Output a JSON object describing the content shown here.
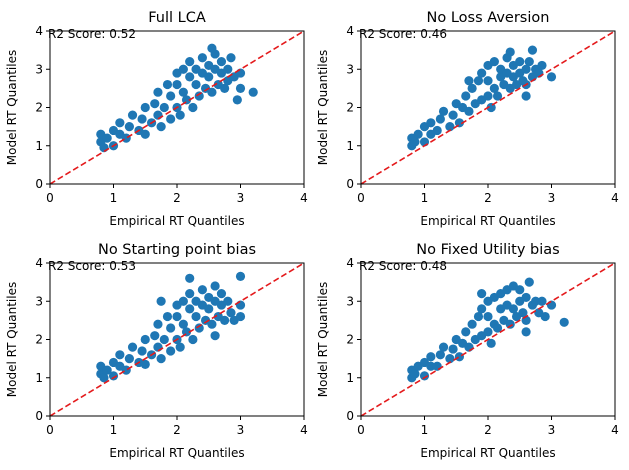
{
  "colors": {
    "points": "#1f77b4",
    "reference_line": "#e41a1c",
    "axes": "#000000",
    "background": "#ffffff"
  },
  "chart_data": [
    {
      "type": "scatter",
      "title": "Full LCA",
      "xlabel": "Empirical RT Quantiles",
      "ylabel": "Model RT Quantiles",
      "xlim": [
        0,
        4
      ],
      "ylim": [
        0,
        4
      ],
      "xticks": [
        "0",
        "1",
        "2",
        "3",
        "4"
      ],
      "yticks": [
        "0",
        "1",
        "2",
        "3",
        "4"
      ],
      "annotation": "R2 Score: 0.52",
      "reference_line": "y = x (red dashed)",
      "grid": false,
      "series": [
        {
          "color": "#1f77b4",
          "points": [
            [
              0.8,
              1.1
            ],
            [
              0.8,
              1.3
            ],
            [
              0.85,
              0.95
            ],
            [
              0.9,
              1.2
            ],
            [
              1.0,
              1.0
            ],
            [
              1.0,
              1.4
            ],
            [
              1.1,
              1.3
            ],
            [
              1.1,
              1.6
            ],
            [
              1.2,
              1.2
            ],
            [
              1.25,
              1.5
            ],
            [
              1.3,
              1.8
            ],
            [
              1.4,
              1.4
            ],
            [
              1.45,
              1.7
            ],
            [
              1.5,
              2.0
            ],
            [
              1.5,
              1.3
            ],
            [
              1.6,
              1.6
            ],
            [
              1.65,
              2.1
            ],
            [
              1.7,
              1.8
            ],
            [
              1.7,
              2.4
            ],
            [
              1.75,
              1.5
            ],
            [
              1.8,
              2.0
            ],
            [
              1.85,
              2.6
            ],
            [
              1.9,
              1.7
            ],
            [
              1.9,
              2.3
            ],
            [
              2.0,
              2.0
            ],
            [
              2.0,
              2.6
            ],
            [
              2.0,
              2.9
            ],
            [
              2.05,
              1.8
            ],
            [
              2.1,
              2.4
            ],
            [
              2.1,
              3.0
            ],
            [
              2.15,
              2.2
            ],
            [
              2.2,
              2.8
            ],
            [
              2.2,
              3.2
            ],
            [
              2.25,
              2.0
            ],
            [
              2.3,
              2.6
            ],
            [
              2.3,
              3.0
            ],
            [
              2.35,
              2.3
            ],
            [
              2.4,
              2.9
            ],
            [
              2.4,
              3.3
            ],
            [
              2.45,
              2.5
            ],
            [
              2.5,
              2.8
            ],
            [
              2.5,
              3.1
            ],
            [
              2.55,
              2.4
            ],
            [
              2.6,
              3.0
            ],
            [
              2.6,
              3.4
            ],
            [
              2.65,
              2.6
            ],
            [
              2.7,
              2.9
            ],
            [
              2.7,
              3.2
            ],
            [
              2.75,
              2.5
            ],
            [
              2.8,
              3.0
            ],
            [
              2.8,
              2.7
            ],
            [
              2.85,
              3.3
            ],
            [
              2.9,
              2.8
            ],
            [
              2.95,
              2.2
            ],
            [
              3.0,
              2.9
            ],
            [
              3.0,
              2.5
            ],
            [
              3.2,
              2.4
            ],
            [
              2.55,
              3.55
            ]
          ]
        }
      ]
    },
    {
      "type": "scatter",
      "title": "No Loss Aversion",
      "xlabel": "Empirical RT Quantiles",
      "ylabel": "Model RT Quantiles",
      "xlim": [
        0,
        4
      ],
      "ylim": [
        0,
        4
      ],
      "xticks": [
        "0",
        "1",
        "2",
        "3",
        "4"
      ],
      "yticks": [
        "0",
        "1",
        "2",
        "3",
        "4"
      ],
      "annotation": "R2 Score: 0.46",
      "reference_line": "y = x (red dashed)",
      "grid": false,
      "series": [
        {
          "color": "#1f77b4",
          "points": [
            [
              0.8,
              1.0
            ],
            [
              0.8,
              1.2
            ],
            [
              0.85,
              1.1
            ],
            [
              0.9,
              1.3
            ],
            [
              1.0,
              1.1
            ],
            [
              1.0,
              1.5
            ],
            [
              1.1,
              1.3
            ],
            [
              1.1,
              1.6
            ],
            [
              1.2,
              1.4
            ],
            [
              1.25,
              1.7
            ],
            [
              1.3,
              1.9
            ],
            [
              1.4,
              1.5
            ],
            [
              1.45,
              1.8
            ],
            [
              1.5,
              2.1
            ],
            [
              1.55,
              1.6
            ],
            [
              1.6,
              2.0
            ],
            [
              1.65,
              2.3
            ],
            [
              1.7,
              1.9
            ],
            [
              1.75,
              2.5
            ],
            [
              1.8,
              2.1
            ],
            [
              1.85,
              2.7
            ],
            [
              1.9,
              2.2
            ],
            [
              1.9,
              2.9
            ],
            [
              2.0,
              2.3
            ],
            [
              2.0,
              2.7
            ],
            [
              2.0,
              3.1
            ],
            [
              2.05,
              2.0
            ],
            [
              2.1,
              2.5
            ],
            [
              2.1,
              3.2
            ],
            [
              2.15,
              2.3
            ],
            [
              2.2,
              2.8
            ],
            [
              2.2,
              3.0
            ],
            [
              2.25,
              2.6
            ],
            [
              2.3,
              2.9
            ],
            [
              2.3,
              3.3
            ],
            [
              2.35,
              2.5
            ],
            [
              2.4,
              2.8
            ],
            [
              2.4,
              3.1
            ],
            [
              2.45,
              2.6
            ],
            [
              2.5,
              2.9
            ],
            [
              2.5,
              3.2
            ],
            [
              2.55,
              2.7
            ],
            [
              2.6,
              3.0
            ],
            [
              2.6,
              2.6
            ],
            [
              2.65,
              3.2
            ],
            [
              2.7,
              2.8
            ],
            [
              2.75,
              3.0
            ],
            [
              2.8,
              2.9
            ],
            [
              2.85,
              3.1
            ],
            [
              2.35,
              3.45
            ],
            [
              2.7,
              3.5
            ],
            [
              1.7,
              2.7
            ],
            [
              3.0,
              2.8
            ],
            [
              2.6,
              2.3
            ]
          ]
        }
      ]
    },
    {
      "type": "scatter",
      "title": "No Starting point bias",
      "xlabel": "Empirical RT Quantiles",
      "ylabel": "Model RT Quantiles",
      "xlim": [
        0,
        4
      ],
      "ylim": [
        0,
        4
      ],
      "xticks": [
        "0",
        "1",
        "2",
        "3",
        "4"
      ],
      "yticks": [
        "0",
        "1",
        "2",
        "3",
        "4"
      ],
      "annotation": "R2 Score: 0.53",
      "reference_line": "y = x (red dashed)",
      "grid": false,
      "series": [
        {
          "color": "#1f77b4",
          "points": [
            [
              0.8,
              1.1
            ],
            [
              0.8,
              1.3
            ],
            [
              0.85,
              1.0
            ],
            [
              0.9,
              1.2
            ],
            [
              1.0,
              1.05
            ],
            [
              1.0,
              1.4
            ],
            [
              1.1,
              1.3
            ],
            [
              1.1,
              1.6
            ],
            [
              1.2,
              1.2
            ],
            [
              1.25,
              1.5
            ],
            [
              1.3,
              1.8
            ],
            [
              1.4,
              1.4
            ],
            [
              1.45,
              1.7
            ],
            [
              1.5,
              2.0
            ],
            [
              1.5,
              1.35
            ],
            [
              1.6,
              1.6
            ],
            [
              1.65,
              2.1
            ],
            [
              1.7,
              1.8
            ],
            [
              1.7,
              2.4
            ],
            [
              1.75,
              1.5
            ],
            [
              1.8,
              2.0
            ],
            [
              1.85,
              2.6
            ],
            [
              1.9,
              1.7
            ],
            [
              1.9,
              2.3
            ],
            [
              2.0,
              2.0
            ],
            [
              2.0,
              2.6
            ],
            [
              2.0,
              2.9
            ],
            [
              2.05,
              1.8
            ],
            [
              2.1,
              2.4
            ],
            [
              2.1,
              3.0
            ],
            [
              2.15,
              2.2
            ],
            [
              2.2,
              2.8
            ],
            [
              2.2,
              3.2
            ],
            [
              2.25,
              2.0
            ],
            [
              2.3,
              2.6
            ],
            [
              2.3,
              3.0
            ],
            [
              2.35,
              2.3
            ],
            [
              2.4,
              2.9
            ],
            [
              2.4,
              3.3
            ],
            [
              2.45,
              2.5
            ],
            [
              2.5,
              2.8
            ],
            [
              2.5,
              3.1
            ],
            [
              2.55,
              2.4
            ],
            [
              2.6,
              3.0
            ],
            [
              2.6,
              3.4
            ],
            [
              2.65,
              2.6
            ],
            [
              2.7,
              2.9
            ],
            [
              2.7,
              3.2
            ],
            [
              2.75,
              2.5
            ],
            [
              2.8,
              3.0
            ],
            [
              2.85,
              2.7
            ],
            [
              2.9,
              2.5
            ],
            [
              3.0,
              2.9
            ],
            [
              3.0,
              2.6
            ],
            [
              2.2,
              3.6
            ],
            [
              1.75,
              3.0
            ],
            [
              3.0,
              3.65
            ],
            [
              2.6,
              2.1
            ]
          ]
        }
      ]
    },
    {
      "type": "scatter",
      "title": "No Fixed Utility bias",
      "xlabel": "Empirical RT Quantiles",
      "ylabel": "Model RT Quantiles",
      "xlim": [
        0,
        4
      ],
      "ylim": [
        0,
        4
      ],
      "xticks": [
        "0",
        "1",
        "2",
        "3",
        "4"
      ],
      "yticks": [
        "0",
        "1",
        "2",
        "3",
        "4"
      ],
      "annotation": "R2 Score: 0.48",
      "reference_line": "y = x (red dashed)",
      "grid": false,
      "series": [
        {
          "color": "#1f77b4",
          "points": [
            [
              0.8,
              1.0
            ],
            [
              0.8,
              1.2
            ],
            [
              0.85,
              1.1
            ],
            [
              0.9,
              1.3
            ],
            [
              1.0,
              1.05
            ],
            [
              1.0,
              1.4
            ],
            [
              1.1,
              1.3
            ],
            [
              1.1,
              1.55
            ],
            [
              1.2,
              1.3
            ],
            [
              1.25,
              1.6
            ],
            [
              1.3,
              1.8
            ],
            [
              1.4,
              1.5
            ],
            [
              1.45,
              1.75
            ],
            [
              1.5,
              2.0
            ],
            [
              1.55,
              1.55
            ],
            [
              1.6,
              1.9
            ],
            [
              1.65,
              2.2
            ],
            [
              1.7,
              1.8
            ],
            [
              1.75,
              2.4
            ],
            [
              1.8,
              2.0
            ],
            [
              1.85,
              2.6
            ],
            [
              1.9,
              2.1
            ],
            [
              1.9,
              2.8
            ],
            [
              2.0,
              2.2
            ],
            [
              2.0,
              2.6
            ],
            [
              2.0,
              3.0
            ],
            [
              2.05,
              1.9
            ],
            [
              2.1,
              2.4
            ],
            [
              2.1,
              3.1
            ],
            [
              2.15,
              2.3
            ],
            [
              2.2,
              2.8
            ],
            [
              2.2,
              3.2
            ],
            [
              2.25,
              2.5
            ],
            [
              2.3,
              2.9
            ],
            [
              2.3,
              3.3
            ],
            [
              2.35,
              2.4
            ],
            [
              2.4,
              2.8
            ],
            [
              2.4,
              3.4
            ],
            [
              2.45,
              2.6
            ],
            [
              2.5,
              3.0
            ],
            [
              2.5,
              3.3
            ],
            [
              2.55,
              2.7
            ],
            [
              2.6,
              3.1
            ],
            [
              2.6,
              2.5
            ],
            [
              2.65,
              3.5
            ],
            [
              2.7,
              2.9
            ],
            [
              2.75,
              3.0
            ],
            [
              2.8,
              2.7
            ],
            [
              2.85,
              3.0
            ],
            [
              1.9,
              3.2
            ],
            [
              2.9,
              2.6
            ],
            [
              3.0,
              2.9
            ],
            [
              3.2,
              2.45
            ],
            [
              2.6,
              2.2
            ]
          ]
        }
      ]
    }
  ]
}
